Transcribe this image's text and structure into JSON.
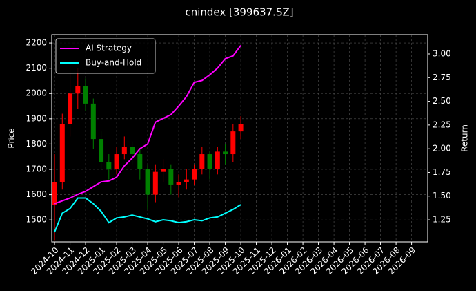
{
  "chart_data": {
    "type": "candlestick",
    "title": "cnindex [399637.SZ]",
    "y_label": "Price",
    "y2_label": "Return",
    "x": [
      0,
      0.5,
      1,
      1.5,
      2,
      2.5,
      3,
      3.5,
      4,
      4.5,
      5,
      5.5,
      6,
      6.5,
      7,
      7.5,
      8,
      8.5,
      9,
      9.5,
      10,
      10.5,
      11,
      11.5,
      12
    ],
    "candles": {
      "open": [
        1560,
        1650,
        1880,
        2000,
        2030,
        1960,
        1820,
        1730,
        1700,
        1760,
        1790,
        1760,
        1700,
        1600,
        1690,
        1700,
        1640,
        1650,
        1660,
        1700,
        1760,
        1700,
        1770,
        1760,
        1850
      ],
      "high": [
        1760,
        1920,
        2130,
        2100,
        2060,
        1980,
        1850,
        1760,
        1790,
        1830,
        1810,
        1780,
        1720,
        1720,
        1740,
        1720,
        1680,
        1700,
        1720,
        1790,
        1770,
        1790,
        1800,
        1880,
        1910
      ],
      "low": [
        1420,
        1620,
        1830,
        1940,
        1930,
        1780,
        1700,
        1660,
        1680,
        1740,
        1720,
        1660,
        1540,
        1570,
        1650,
        1600,
        1590,
        1620,
        1640,
        1680,
        1660,
        1680,
        1720,
        1730,
        1820
      ],
      "close": [
        1650,
        1880,
        2000,
        2030,
        1960,
        1820,
        1730,
        1700,
        1760,
        1790,
        1760,
        1700,
        1600,
        1690,
        1700,
        1640,
        1650,
        1660,
        1700,
        1760,
        1700,
        1770,
        1760,
        1850,
        1880
      ],
      "up_color": "#ff0000",
      "down_color": "#008000"
    },
    "series": [
      {
        "name": "AI Strategy",
        "color": "#ff00ff",
        "axis": "y2",
        "values": [
          1.42,
          1.45,
          1.48,
          1.52,
          1.55,
          1.6,
          1.65,
          1.66,
          1.7,
          1.82,
          1.9,
          2.0,
          2.05,
          2.28,
          2.32,
          2.36,
          2.45,
          2.55,
          2.7,
          2.72,
          2.78,
          2.85,
          2.95,
          2.98,
          3.09
        ]
      },
      {
        "name": "Buy-and-Hold",
        "color": "#00ffff",
        "axis": "y2",
        "values": [
          1.12,
          1.32,
          1.37,
          1.48,
          1.48,
          1.42,
          1.34,
          1.22,
          1.27,
          1.28,
          1.3,
          1.28,
          1.26,
          1.23,
          1.25,
          1.24,
          1.22,
          1.23,
          1.25,
          1.24,
          1.27,
          1.28,
          1.32,
          1.36,
          1.41
        ]
      }
    ],
    "xlim": [
      -0.18,
      24.04
    ],
    "xticks": [
      {
        "value": 0,
        "label": "2024-10"
      },
      {
        "value": 1,
        "label": "2024-11"
      },
      {
        "value": 2,
        "label": "2024-12"
      },
      {
        "value": 3,
        "label": "2025-01"
      },
      {
        "value": 4,
        "label": "2025-02"
      },
      {
        "value": 5,
        "label": "2025-03"
      },
      {
        "value": 6,
        "label": "2025-04"
      },
      {
        "value": 7,
        "label": "2025-05"
      },
      {
        "value": 8,
        "label": "2025-06"
      },
      {
        "value": 9,
        "label": "2025-07"
      },
      {
        "value": 10,
        "label": "2025-08"
      },
      {
        "value": 11,
        "label": "2025-09"
      },
      {
        "value": 12,
        "label": "2025-10"
      },
      {
        "value": 13,
        "label": "2025-11"
      },
      {
        "value": 14,
        "label": "2025-12"
      },
      {
        "value": 15,
        "label": "2026-01"
      },
      {
        "value": 16,
        "label": "2026-02"
      },
      {
        "value": 17,
        "label": "2026-03"
      },
      {
        "value": 18,
        "label": "2026-04"
      },
      {
        "value": 19,
        "label": "2026-05"
      },
      {
        "value": 20,
        "label": "2026-06"
      },
      {
        "value": 21,
        "label": "2026-07"
      },
      {
        "value": 22,
        "label": "2026-08"
      },
      {
        "value": 23,
        "label": "2026-09"
      }
    ],
    "ylim": [
      1413,
      2233
    ],
    "yticks": [
      1500,
      1600,
      1700,
      1800,
      1900,
      2000,
      2100,
      2200
    ],
    "y2lim": [
      1.017,
      3.204
    ],
    "y2ticks": [
      1.25,
      {
        "value": 1.5,
        "label": "1.50"
      },
      1.75,
      {
        "value": 2.0,
        "label": "2.00"
      },
      2.25,
      {
        "value": 2.5,
        "label": "2.50"
      },
      2.75,
      {
        "value": 3.0,
        "label": "3.00"
      }
    ],
    "grid": true,
    "legend": "upper left"
  }
}
